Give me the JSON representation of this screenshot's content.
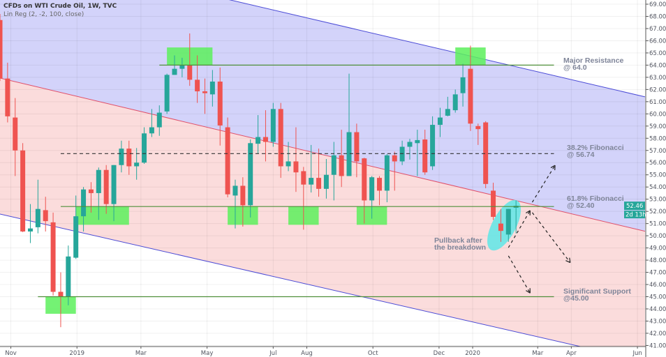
{
  "header": {
    "title": "CFDs on WTI Crude Oil, 1W, TVC",
    "indicator": "Lin Reg (2, -2, 100, close)"
  },
  "colors": {
    "up": "#26a69a",
    "down": "#ef5350",
    "zone": "#5cf05c",
    "level_line": "#4f8f3a",
    "channel_edge": "#4b4bd6",
    "channel_mid": "#e0506a",
    "channel_upper_fill": "#d3d3fa",
    "channel_lower_fill": "#fbdcdc",
    "highlight": "#5ee6e6",
    "price_tag": "#26a69a",
    "annotation_text": "#7f8599"
  },
  "chart_data": {
    "type": "candlestick",
    "interval": "1W",
    "ylim": [
      41,
      69
    ],
    "price_ticks": [
      "41.00",
      "42.00",
      "43.00",
      "44.00",
      "45.00",
      "46.00",
      "47.00",
      "48.00",
      "49.00",
      "50.00",
      "51.00",
      "52.00",
      "53.00",
      "54.00",
      "55.00",
      "56.00",
      "57.00",
      "58.00",
      "59.00",
      "60.00",
      "61.00",
      "62.00",
      "63.00",
      "64.00",
      "65.00",
      "66.00",
      "67.00",
      "68.00",
      "69.00"
    ],
    "x_ticks": [
      {
        "label": "Nov",
        "date": "2018-11-01"
      },
      {
        "label": "2019",
        "date": "2019-01-01"
      },
      {
        "label": "Mar",
        "date": "2019-03-01"
      },
      {
        "label": "May",
        "date": "2019-05-01"
      },
      {
        "label": "Jul",
        "date": "2019-07-01"
      },
      {
        "label": "Aug",
        "date": "2019-08-01"
      },
      {
        "label": "Oct",
        "date": "2019-10-01"
      },
      {
        "label": "Dec",
        "date": "2019-12-01"
      },
      {
        "label": "2020",
        "date": "2020-01-01"
      },
      {
        "label": "Mar",
        "date": "2020-03-01"
      },
      {
        "label": "Apr",
        "date": "2020-04-01"
      },
      {
        "label": "Jun",
        "date": "2020-06-01"
      }
    ],
    "grid": true,
    "candles": [
      [
        "2018-10-22",
        67.7,
        68.2,
        62.7,
        62.9
      ],
      [
        "2018-10-29",
        62.9,
        64.2,
        59.3,
        59.8
      ],
      [
        "2018-11-05",
        59.7,
        61.3,
        54.9,
        57.0
      ],
      [
        "2018-11-12",
        57.0,
        57.6,
        50.3,
        50.35
      ],
      [
        "2018-11-19",
        50.35,
        52.6,
        49.4,
        50.6
      ],
      [
        "2018-11-26",
        50.7,
        54.6,
        50.2,
        52.2
      ],
      [
        "2018-12-03",
        52.1,
        53.2,
        50.35,
        51.2
      ],
      [
        "2018-12-10",
        51.1,
        51.9,
        45.1,
        45.4
      ],
      [
        "2018-12-17",
        45.4,
        47.0,
        42.5,
        45.0
      ],
      [
        "2018-12-24",
        45.0,
        49.2,
        44.3,
        48.3
      ],
      [
        "2018-12-31",
        48.2,
        53.3,
        48.1,
        51.6
      ],
      [
        "2019-01-07",
        51.6,
        54.0,
        50.35,
        53.8
      ],
      [
        "2019-01-14",
        53.8,
        54.4,
        51.9,
        53.5
      ],
      [
        "2019-01-21",
        53.5,
        55.6,
        51.3,
        55.4
      ],
      [
        "2019-01-28",
        55.4,
        55.8,
        51.8,
        52.6
      ],
      [
        "2019-02-04",
        52.6,
        55.8,
        51.2,
        55.8
      ],
      [
        "2019-02-11",
        55.8,
        57.8,
        55.2,
        57.15
      ],
      [
        "2019-02-18",
        57.15,
        57.8,
        55.0,
        55.7
      ],
      [
        "2019-02-25",
        55.7,
        57.2,
        54.6,
        56.0
      ],
      [
        "2019-03-04",
        56.0,
        58.9,
        55.9,
        58.4
      ],
      [
        "2019-03-11",
        58.4,
        60.4,
        58.1,
        58.9
      ],
      [
        "2019-03-18",
        58.9,
        60.7,
        58.2,
        60.1
      ],
      [
        "2019-03-25",
        60.2,
        63.3,
        60.0,
        63.2
      ],
      [
        "2019-04-01",
        63.2,
        64.8,
        63.2,
        63.7
      ],
      [
        "2019-04-08",
        63.7,
        64.6,
        63.0,
        64.0
      ],
      [
        "2019-04-15",
        64.0,
        66.6,
        62.3,
        62.8
      ],
      [
        "2019-04-22",
        62.8,
        64.8,
        60.9,
        61.85
      ],
      [
        "2019-04-29",
        61.85,
        62.9,
        60.0,
        61.7
      ],
      [
        "2019-05-06",
        61.6,
        63.6,
        60.6,
        62.65
      ],
      [
        "2019-05-13",
        62.65,
        63.8,
        57.4,
        59.05
      ],
      [
        "2019-05-20",
        58.9,
        59.7,
        53.15,
        53.4
      ],
      [
        "2019-05-27",
        53.3,
        54.6,
        50.6,
        54.1
      ],
      [
        "2019-06-03",
        54.1,
        54.8,
        50.75,
        52.5
      ],
      [
        "2019-06-10",
        52.5,
        57.9,
        51.5,
        57.6
      ],
      [
        "2019-06-17",
        57.55,
        59.9,
        56.75,
        58.1
      ],
      [
        "2019-06-24",
        58.1,
        60.3,
        56.1,
        57.7
      ],
      [
        "2019-07-01",
        57.7,
        60.9,
        57.3,
        60.4
      ],
      [
        "2019-07-08",
        60.4,
        60.9,
        54.75,
        55.7
      ],
      [
        "2019-07-15",
        55.7,
        57.7,
        55.3,
        56.1
      ],
      [
        "2019-07-22",
        56.1,
        58.9,
        53.6,
        55.2
      ],
      [
        "2019-07-29",
        55.3,
        55.65,
        50.5,
        54.2
      ],
      [
        "2019-08-05",
        54.2,
        57.45,
        53.55,
        54.75
      ],
      [
        "2019-08-12",
        54.75,
        57.15,
        53.2,
        53.85
      ],
      [
        "2019-08-19",
        53.85,
        56.3,
        53.05,
        55.0
      ],
      [
        "2019-08-26",
        55.0,
        57.7,
        52.9,
        56.6
      ],
      [
        "2019-09-02",
        56.6,
        58.7,
        54.0,
        54.9
      ],
      [
        "2019-09-09",
        54.9,
        63.3,
        54.9,
        58.5
      ],
      [
        "2019-09-16",
        58.5,
        59.2,
        54.8,
        56.1
      ],
      [
        "2019-09-23",
        56.35,
        56.4,
        51.0,
        52.9
      ],
      [
        "2019-09-30",
        52.9,
        54.9,
        51.4,
        54.8
      ],
      [
        "2019-10-07",
        54.75,
        54.9,
        52.5,
        53.7
      ],
      [
        "2019-10-14",
        53.7,
        56.7,
        52.75,
        56.6
      ],
      [
        "2019-10-21",
        56.6,
        56.9,
        53.7,
        56.1
      ],
      [
        "2019-10-28",
        56.1,
        57.8,
        55.8,
        57.3
      ],
      [
        "2019-11-04",
        57.3,
        57.95,
        56.25,
        57.7
      ],
      [
        "2019-11-11",
        57.6,
        58.7,
        54.9,
        57.85
      ],
      [
        "2019-11-18",
        57.9,
        58.7,
        55.0,
        55.2
      ],
      [
        "2019-11-25",
        55.7,
        59.8,
        55.4,
        59.1
      ],
      [
        "2019-12-02",
        59.1,
        60.5,
        58.1,
        59.7
      ],
      [
        "2019-12-09",
        59.85,
        61.4,
        59.8,
        60.4
      ],
      [
        "2019-12-16",
        60.3,
        62.0,
        60.1,
        61.6
      ],
      [
        "2019-12-23",
        61.7,
        64.1,
        60.6,
        63.0
      ],
      [
        "2019-12-30",
        63.7,
        65.6,
        58.6,
        59.2
      ],
      [
        "2020-01-06",
        59.0,
        59.2,
        57.45,
        58.75
      ],
      [
        "2020-01-13",
        59.3,
        59.4,
        53.9,
        54.25
      ],
      [
        "2020-01-20",
        53.7,
        54.35,
        51.3,
        51.55
      ],
      [
        "2020-01-27",
        51.0,
        52.2,
        49.5,
        50.4
      ],
      [
        "2020-02-03",
        50.1,
        52.2,
        49.5,
        52.2
      ],
      [
        "2020-02-10",
        52.3,
        52.9,
        50.2,
        52.46
      ]
    ],
    "last_price": "52.46",
    "countdown": "2d 13h",
    "regression_channel": {
      "from": "2018-10-22",
      "to": "2020-06-08",
      "upper": [
        73.76,
        61.4
      ],
      "mid": [
        62.94,
        50.37
      ],
      "lower": [
        51.78,
        39.7
      ]
    },
    "levels": [
      {
        "price": 64.0,
        "from": "2019-03-18",
        "to": "2020-03-16",
        "style": "solid",
        "label1": "Major Resistance",
        "label2": "@ 64.0"
      },
      {
        "price": 56.74,
        "from": "2018-12-17",
        "to": "2020-03-16",
        "style": "dashed",
        "label1": "38.2% Fibonacci",
        "label2": "@ 56.74"
      },
      {
        "price": 52.4,
        "from": "2018-12-17",
        "to": "2020-03-16",
        "style": "solid",
        "label1": "61.8% Fibonacci",
        "label2": "@ 52.40"
      },
      {
        "price": 45.0,
        "from": "2018-11-26",
        "to": "2020-03-16",
        "style": "solid",
        "label1": "Significant Support",
        "label2": "@45.00"
      }
    ],
    "zones": [
      {
        "from": "2019-03-25",
        "to": "2019-05-06",
        "low": 64.0,
        "high": 65.45
      },
      {
        "from": "2019-12-16",
        "to": "2020-01-13",
        "low": 64.0,
        "high": 65.45
      },
      {
        "from": "2018-12-31",
        "to": "2019-02-18",
        "low": 50.9,
        "high": 52.4
      },
      {
        "from": "2019-05-20",
        "to": "2019-06-17",
        "low": 50.9,
        "high": 52.4
      },
      {
        "from": "2019-07-15",
        "to": "2019-08-12",
        "low": 50.9,
        "high": 52.4
      },
      {
        "from": "2019-09-16",
        "to": "2019-10-14",
        "low": 50.9,
        "high": 52.4
      },
      {
        "from": "2018-12-03",
        "to": "2018-12-31",
        "low": 43.6,
        "high": 45.0
      }
    ],
    "arrows": [
      {
        "from": [
          "2020-02-03",
          49.03
        ],
        "to": [
          "2020-02-23",
          52.07
        ]
      },
      {
        "from": [
          "2020-02-25",
          52.75
        ],
        "to": [
          "2020-03-17",
          55.78
        ]
      },
      {
        "from": [
          "2020-02-25",
          51.9
        ],
        "to": [
          "2020-03-31",
          47.8
        ]
      },
      {
        "from": [
          "2020-02-03",
          48.35
        ],
        "to": [
          "2020-02-23",
          45.3
        ]
      }
    ],
    "highlight": {
      "date": "2020-01-30",
      "price": 50.86,
      "label1": "Pullback after",
      "label2": "the breakdown"
    }
  }
}
